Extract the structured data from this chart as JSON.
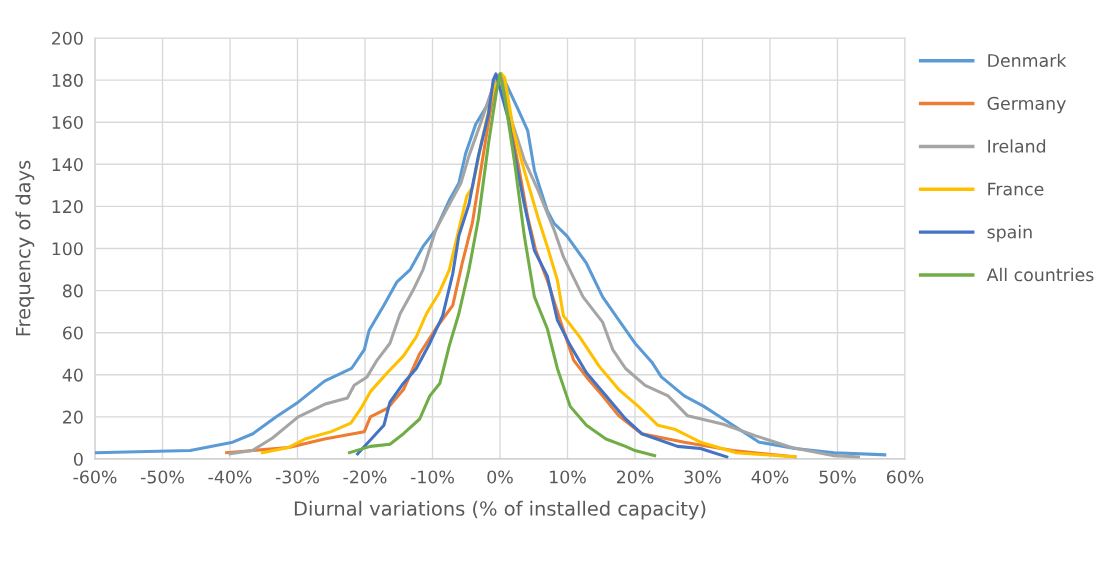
{
  "chart_data": {
    "type": "line",
    "xlabel": "Diurnal variations (% of installed capacity)",
    "ylabel": "Frequency of days",
    "xlim": [
      -60,
      60
    ],
    "ylim": [
      0,
      200
    ],
    "xticks": [
      {
        "value": -60,
        "label": "-60%"
      },
      {
        "value": -50,
        "label": "-50%"
      },
      {
        "value": -40,
        "label": "-40%"
      },
      {
        "value": -30,
        "label": "-30%"
      },
      {
        "value": -20,
        "label": "-20%"
      },
      {
        "value": -10,
        "label": "-10%"
      },
      {
        "value": 0,
        "label": "0%"
      },
      {
        "value": 10,
        "label": "10%"
      },
      {
        "value": 20,
        "label": "20%"
      },
      {
        "value": 30,
        "label": "30%"
      },
      {
        "value": 40,
        "label": "40%"
      },
      {
        "value": 50,
        "label": "50%"
      },
      {
        "value": 60,
        "label": "60%"
      }
    ],
    "yticks": [
      0,
      20,
      40,
      60,
      80,
      100,
      120,
      140,
      160,
      180,
      200
    ],
    "grid": true,
    "legend": "right",
    "marker": "none",
    "line_style": "solid",
    "series": [
      {
        "name": "Denmark",
        "color": "#5b9bd5",
        "x": [
          -60,
          -45.9,
          -39.6,
          -36.6,
          -33.2,
          -29.9,
          -26,
          -22,
          -20.1,
          -19.4,
          -17.2,
          -15.3,
          -13.3,
          -11.4,
          -9.5,
          -7.5,
          -6.1,
          -5.1,
          -3.6,
          -1.9,
          -0.7,
          0.2,
          2.7,
          4.1,
          5.1,
          7,
          8,
          9.9,
          12.8,
          15.2,
          17.6,
          20,
          22.5,
          23.9,
          27.3,
          30.2,
          33.1,
          35.5,
          38.4,
          43.7,
          49.5,
          57
        ],
        "values": [
          3,
          4,
          8,
          12,
          20,
          27,
          37,
          43,
          52,
          61,
          73,
          84,
          90,
          101,
          109,
          123,
          131,
          145,
          159,
          168,
          180,
          183,
          166,
          156,
          137,
          118,
          112,
          106,
          93,
          77,
          66,
          55,
          46,
          39,
          30,
          25,
          19,
          14,
          8,
          5,
          3,
          2
        ]
      },
      {
        "name": "Germany",
        "color": "#ed7d31",
        "x": [
          -40.5,
          -31.3,
          -26,
          -20.1,
          -19.2,
          -16.7,
          -14.3,
          -11.9,
          -9.5,
          -7,
          -5.6,
          -4.1,
          -2.7,
          -1.5,
          -0.5,
          0.1,
          1.2,
          2.7,
          4.1,
          5.3,
          7,
          8.9,
          10.9,
          12.8,
          15.2,
          17.6,
          21,
          27.3,
          34.5,
          43.7
        ],
        "values": [
          3,
          5.5,
          9.5,
          13,
          20,
          24,
          33,
          50,
          62,
          73,
          93,
          112,
          140,
          164,
          181,
          183,
          164,
          140,
          115,
          99,
          85,
          66,
          47,
          39,
          30,
          20.5,
          12,
          8,
          4,
          1
        ]
      },
      {
        "name": "Ireland",
        "color": "#a5a5a5",
        "x": [
          -40,
          -36.7,
          -33.7,
          -29.9,
          -26,
          -22.6,
          -21.6,
          -19.7,
          -18.2,
          -16.3,
          -14.8,
          -12.9,
          -11.4,
          -9.5,
          -8,
          -5.8,
          -4.6,
          -2.7,
          -0.7,
          0.1,
          1.7,
          3.6,
          5.6,
          8,
          9.4,
          12.3,
          15.2,
          16.7,
          18.6,
          21.5,
          24.9,
          27.8,
          33.1,
          37.9,
          43.2,
          49.5,
          53.1
        ],
        "values": [
          2.5,
          4,
          10,
          20,
          26,
          29,
          35,
          39,
          47,
          55,
          69,
          80,
          90,
          109,
          118,
          131,
          144,
          161,
          180,
          183,
          161,
          142,
          128,
          109,
          96,
          77,
          65,
          52,
          43,
          35,
          30,
          20.5,
          16.5,
          11,
          5.5,
          1.6,
          1
        ]
      },
      {
        "name": "France",
        "color": "#ffc000",
        "x": [
          -35.2,
          -31.3,
          -28.9,
          -25,
          -22.1,
          -20.6,
          -19.2,
          -16.7,
          -14.3,
          -12.4,
          -10.9,
          -9,
          -7.5,
          -6.1,
          -4.9,
          -4.1,
          -2.7,
          -1,
          0.2,
          0.7,
          2,
          3.6,
          5.6,
          7,
          8.5,
          9.4,
          11.8,
          14.7,
          17.6,
          20.5,
          23.4,
          26,
          29.7,
          35,
          43.7
        ],
        "values": [
          3,
          5.5,
          9.5,
          13,
          17,
          24,
          32,
          41,
          49,
          58,
          69,
          79,
          90,
          109,
          125,
          129,
          151,
          175,
          183,
          181,
          156,
          137,
          115,
          101,
          85,
          68,
          58,
          44,
          33,
          25,
          16,
          14,
          8,
          3,
          1
        ]
      },
      {
        "name": "spain",
        "color": "#4472c4",
        "x": [
          -21.1,
          -17.2,
          -16.3,
          -14.3,
          -12.4,
          -10.4,
          -8.5,
          -7,
          -6.1,
          -4.6,
          -3.2,
          -1.7,
          -1,
          -0.6,
          1.2,
          2.2,
          3.6,
          5.1,
          7,
          8.5,
          10.4,
          12.8,
          15.7,
          18.6,
          21,
          26.3,
          29.7,
          33.6
        ],
        "values": [
          2.4,
          16,
          27,
          36,
          43,
          55,
          68,
          88,
          106,
          121,
          144,
          164,
          180,
          183,
          162,
          144,
          121,
          99,
          87,
          66,
          54,
          41,
          30,
          19,
          12,
          6,
          5,
          1
        ]
      },
      {
        "name": "All countries",
        "color": "#70ad47",
        "x": [
          -22.3,
          -19.2,
          -16.3,
          -14.3,
          -11.9,
          -10.4,
          -8.9,
          -7.5,
          -6.1,
          -4.6,
          -3.2,
          -1.7,
          -0.5,
          0,
          0.7,
          2.2,
          3.6,
          5.1,
          7,
          8.5,
          10.4,
          12.8,
          15.7,
          18.6,
          20,
          22.9
        ],
        "values": [
          3,
          6,
          7,
          12,
          19,
          30,
          36,
          54,
          69,
          90,
          114,
          150,
          175,
          183,
          172,
          140,
          106,
          77,
          62,
          43,
          25,
          16,
          9.5,
          6,
          4,
          1.6
        ]
      }
    ]
  }
}
